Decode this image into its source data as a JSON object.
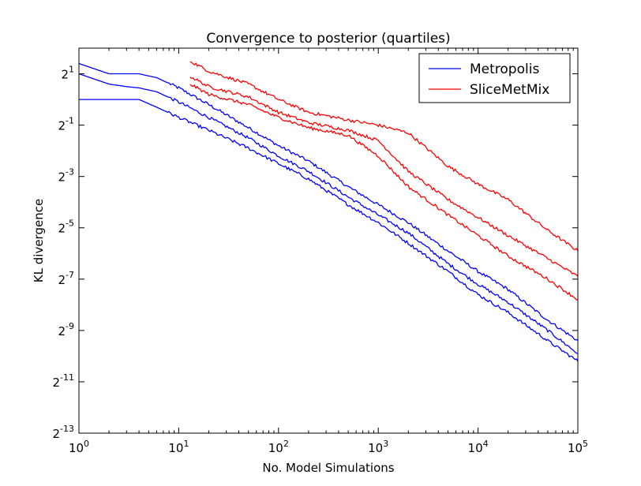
{
  "chart_data": {
    "type": "line",
    "title": "Convergence to posterior (quartiles)",
    "xlabel": "No. Model Simulations",
    "ylabel": "KL divergence",
    "xscale": "log10",
    "yscale": "log2",
    "xlim": [
      1,
      100000
    ],
    "ylim_log2": [
      -13,
      2
    ],
    "grid": false,
    "legend_position": "upper right",
    "xticks": [
      {
        "value": 1,
        "base": "10",
        "exp": "0"
      },
      {
        "value": 10,
        "base": "10",
        "exp": "1"
      },
      {
        "value": 100,
        "base": "10",
        "exp": "2"
      },
      {
        "value": 1000,
        "base": "10",
        "exp": "3"
      },
      {
        "value": 10000,
        "base": "10",
        "exp": "4"
      },
      {
        "value": 100000,
        "base": "10",
        "exp": "5"
      }
    ],
    "yticks": [
      {
        "log2": 1,
        "base": "2",
        "exp": "1"
      },
      {
        "log2": -1,
        "base": "2",
        "exp": "-1"
      },
      {
        "log2": -3,
        "base": "2",
        "exp": "-3"
      },
      {
        "log2": -5,
        "base": "2",
        "exp": "-5"
      },
      {
        "log2": -7,
        "base": "2",
        "exp": "-7"
      },
      {
        "log2": -9,
        "base": "2",
        "exp": "-9"
      },
      {
        "log2": -11,
        "base": "2",
        "exp": "-11"
      },
      {
        "log2": -13,
        "base": "2",
        "exp": "-13"
      }
    ],
    "legend": [
      {
        "label": "Metropolis",
        "color": "#0000ff"
      },
      {
        "label": "SliceMetMix",
        "color": "#ff0000"
      }
    ],
    "series": [
      {
        "name": "Metropolis",
        "quartile": "upper",
        "color": "#0000ff",
        "x": [
          1,
          2,
          3,
          4,
          6,
          10,
          20,
          50,
          100,
          200,
          500,
          1000,
          2000,
          5000,
          10000,
          20000,
          50000,
          100000
        ],
        "log2_y": [
          1.4,
          1.0,
          1.0,
          1.0,
          0.85,
          0.45,
          -0.2,
          -1.1,
          -1.8,
          -2.4,
          -3.4,
          -4.1,
          -4.8,
          -5.9,
          -6.7,
          -7.4,
          -8.6,
          -9.4
        ]
      },
      {
        "name": "Metropolis",
        "quartile": "median",
        "color": "#0000ff",
        "x": [
          1,
          2,
          3,
          4,
          6,
          10,
          20,
          50,
          100,
          200,
          500,
          1000,
          2000,
          5000,
          10000,
          20000,
          50000,
          100000
        ],
        "log2_y": [
          1.0,
          0.6,
          0.5,
          0.45,
          0.3,
          -0.1,
          -0.7,
          -1.5,
          -2.2,
          -2.8,
          -3.8,
          -4.5,
          -5.2,
          -6.4,
          -7.2,
          -7.9,
          -9.0,
          -9.9
        ]
      },
      {
        "name": "Metropolis",
        "quartile": "lower",
        "color": "#0000ff",
        "x": [
          1,
          2,
          3,
          4,
          6,
          10,
          20,
          50,
          100,
          200,
          500,
          1000,
          2000,
          5000,
          10000,
          20000,
          50000,
          100000
        ],
        "log2_y": [
          0.0,
          0.0,
          0.0,
          0.0,
          -0.3,
          -0.7,
          -1.2,
          -1.9,
          -2.5,
          -3.1,
          -4.1,
          -4.8,
          -5.6,
          -6.7,
          -7.6,
          -8.3,
          -9.4,
          -10.2
        ]
      },
      {
        "name": "SliceMetMix",
        "quartile": "upper",
        "color": "#ff0000",
        "x": [
          13,
          20,
          50,
          100,
          200,
          500,
          1000,
          2000,
          5000,
          10000,
          20000,
          50000,
          100000
        ],
        "log2_y": [
          1.5,
          1.1,
          0.6,
          0.0,
          -0.5,
          -0.8,
          -1.0,
          -1.3,
          -2.6,
          -3.3,
          -3.9,
          -5.1,
          -5.9
        ]
      },
      {
        "name": "SliceMetMix",
        "quartile": "median",
        "color": "#ff0000",
        "x": [
          13,
          20,
          50,
          100,
          200,
          500,
          1000,
          2000,
          5000,
          10000,
          20000,
          50000,
          100000
        ],
        "log2_y": [
          0.9,
          0.5,
          0.1,
          -0.5,
          -0.9,
          -1.2,
          -1.6,
          -2.8,
          -3.9,
          -4.6,
          -5.3,
          -6.2,
          -6.9
        ]
      },
      {
        "name": "SliceMetMix",
        "quartile": "lower",
        "color": "#ff0000",
        "x": [
          13,
          20,
          50,
          100,
          200,
          500,
          1000,
          2000,
          5000,
          10000,
          20000,
          50000,
          100000
        ],
        "log2_y": [
          0.6,
          0.2,
          -0.2,
          -0.7,
          -1.1,
          -1.4,
          -2.2,
          -3.4,
          -4.5,
          -5.3,
          -6.1,
          -7.0,
          -7.8
        ]
      }
    ]
  }
}
